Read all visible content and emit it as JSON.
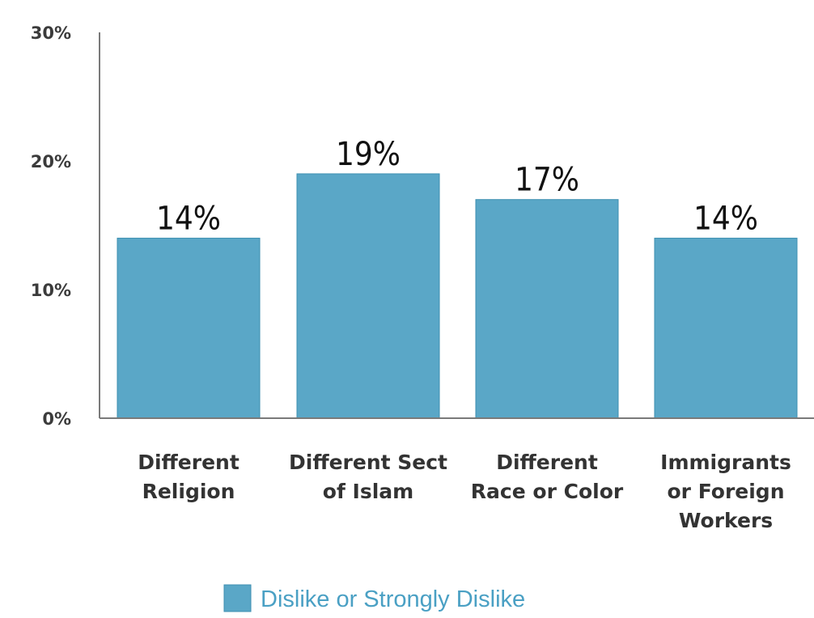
{
  "chart_data": {
    "type": "bar",
    "categories": [
      [
        "Different",
        "Religion"
      ],
      [
        "Different Sect",
        "of Islam"
      ],
      [
        "Different",
        "Race or Color"
      ],
      [
        "Immigrants",
        "or Foreign",
        "Workers"
      ]
    ],
    "series": [
      {
        "name": "Dislike or Strongly Dislike",
        "values": [
          14,
          19,
          17,
          14
        ]
      }
    ],
    "data_labels": [
      "14%",
      "19%",
      "17%",
      "14%"
    ],
    "y_ticks": [
      {
        "value": 0,
        "label": "0%"
      },
      {
        "value": 10,
        "label": "10%"
      },
      {
        "value": 20,
        "label": "20%"
      },
      {
        "value": 30,
        "label": "30%"
      }
    ],
    "ylim": [
      0,
      30
    ],
    "bar_color": "#5aa7c7",
    "bar_stroke": "#3d8fb1",
    "axis_color": "#7a7a7a",
    "legend_position": "bottom-center",
    "grid": false
  }
}
